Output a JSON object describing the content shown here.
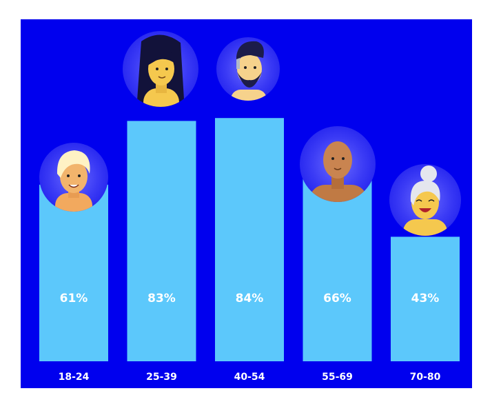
{
  "chart_data": {
    "type": "bar",
    "categories": [
      "18-24",
      "25-39",
      "40-54",
      "55-69",
      "70-80"
    ],
    "values": [
      61,
      83,
      84,
      66,
      43
    ],
    "value_labels": [
      "61%",
      "83%",
      "84%",
      "66%",
      "43%"
    ],
    "ylim": [
      0,
      100
    ],
    "grid": false,
    "legend": "none",
    "colors": {
      "background": "#0000ee",
      "bar": "#5cc8fb",
      "text": "#ffffff"
    },
    "icons": [
      "avatar-young-blonde-icon",
      "avatar-woman-dark-hair-icon",
      "avatar-bearded-man-icon",
      "avatar-bald-man-icon",
      "avatar-grandmother-icon"
    ]
  }
}
